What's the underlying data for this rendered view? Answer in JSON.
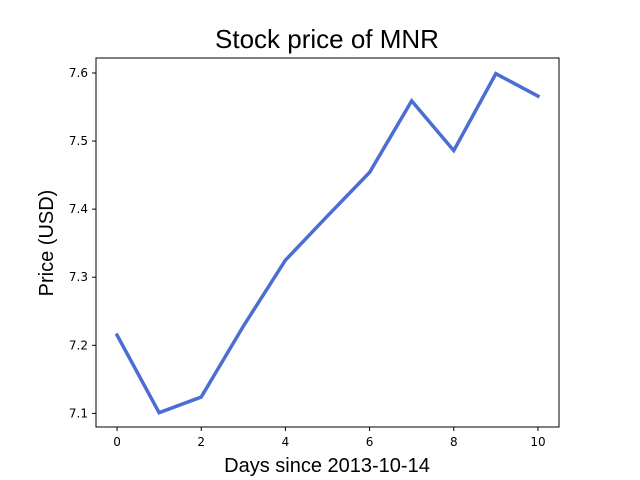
{
  "chart_data": {
    "type": "line",
    "title": "Stock price of MNR",
    "xlabel": "Days since 2013-10-14",
    "ylabel": "Price (USD)",
    "x": [
      0,
      1,
      2,
      3,
      4,
      5,
      6,
      7,
      8,
      9,
      10
    ],
    "series": [
      {
        "values": [
          7.215,
          7.101,
          7.124,
          7.228,
          7.325,
          7.39,
          7.454,
          7.559,
          7.486,
          7.599,
          7.566
        ]
      }
    ],
    "xlim": [
      -0.5,
      10.5
    ],
    "ylim": [
      7.08,
      7.622
    ],
    "xticks": [
      0,
      2,
      4,
      6,
      8,
      10
    ],
    "xtick_labels": [
      "0",
      "2",
      "4",
      "6",
      "8",
      "10"
    ],
    "yticks": [
      7.1,
      7.2,
      7.3,
      7.4,
      7.5,
      7.6
    ],
    "ytick_labels": [
      "7.1",
      "7.2",
      "7.3",
      "7.4",
      "7.5",
      "7.6"
    ],
    "grid": false,
    "line_color": "#4c6ed2"
  }
}
